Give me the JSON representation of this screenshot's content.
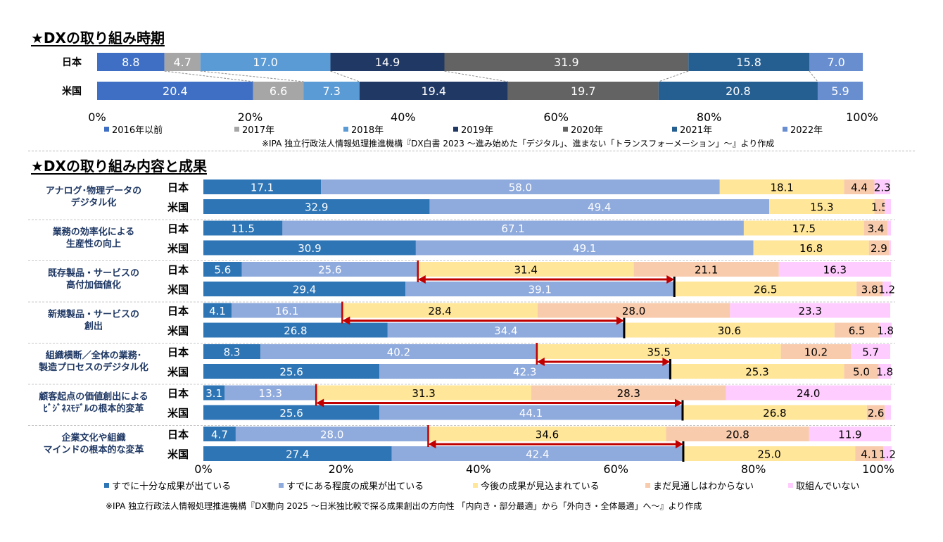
{
  "page": {
    "background": "#ffffff"
  },
  "charts": [
    {
      "title": "★DXの取り組み時期",
      "source": "※IPA 独立行政法人情報処理推進機構『DX白書 2023 ～進み始めた「デジタル」、進まない「トランスフォーメーション」～』より作成"
    },
    {
      "title": "★DXの取り組み内容と成果",
      "source": "※IPA 独立行政法人情報処理推進機構『DX動向 2025 ～日米独比較で探る成果創出の方向性 「内向き・部分最適」から「外向き・全体最適」へ～』より作成"
    }
  ],
  "chart_data": [
    {
      "type": "bar",
      "orientation": "horizontal",
      "stacked": true,
      "title": "★DXの取り組み時期",
      "categories": [
        "日本",
        "米国"
      ],
      "series": [
        {
          "name": "2016年以前",
          "color": "#3f6fc4",
          "values": [
            8.8,
            20.4
          ]
        },
        {
          "name": "2017年",
          "color": "#a6a6a6",
          "values": [
            4.7,
            6.6
          ]
        },
        {
          "name": "2018年",
          "color": "#5b9bd5",
          "values": [
            17.0,
            7.3
          ]
        },
        {
          "name": "2019年",
          "color": "#203864",
          "values": [
            14.9,
            19.4
          ]
        },
        {
          "name": "2020年",
          "color": "#636363",
          "values": [
            31.9,
            19.7
          ]
        },
        {
          "name": "2021年",
          "color": "#255e91",
          "values": [
            15.8,
            20.8
          ]
        },
        {
          "name": "2022年",
          "color": "#698ed0",
          "values": [
            7.0,
            5.9
          ]
        }
      ],
      "xlim": [
        0,
        100
      ],
      "ticks": [
        "0%",
        "20%",
        "40%",
        "60%",
        "80%",
        "100%"
      ],
      "legend": "bottom",
      "grid": false
    },
    {
      "type": "bar",
      "orientation": "horizontal",
      "stacked": true,
      "title": "★DXの取り組み内容と成果",
      "groups": [
        {
          "label": "アナログ･物理データの\nデジタル化",
          "rows": [
            {
              "country": "日本",
              "values": [
                17.1,
                58.0,
                18.1,
                4.4,
                2.3
              ]
            },
            {
              "country": "米国",
              "values": [
                32.9,
                49.4,
                15.3,
                1.5,
                0.9
              ]
            }
          ]
        },
        {
          "label": "業務の効率化による\n生産性の向上",
          "rows": [
            {
              "country": "日本",
              "values": [
                11.5,
                67.1,
                17.5,
                3.4,
                0.5
              ]
            },
            {
              "country": "米国",
              "values": [
                30.9,
                49.1,
                16.8,
                2.9,
                0.3
              ]
            }
          ]
        },
        {
          "label": "既存製品・サービスの\n高付加価値化",
          "rows": [
            {
              "country": "日本",
              "values": [
                5.6,
                25.6,
                31.4,
                21.1,
                16.3
              ]
            },
            {
              "country": "米国",
              "values": [
                29.4,
                39.1,
                26.5,
                3.8,
                1.2
              ]
            }
          ]
        },
        {
          "label": "新規製品・サービスの\n創出",
          "rows": [
            {
              "country": "日本",
              "values": [
                4.1,
                16.1,
                28.4,
                28.0,
                23.3
              ]
            },
            {
              "country": "米国",
              "values": [
                26.8,
                34.4,
                30.6,
                6.5,
                1.8
              ]
            }
          ]
        },
        {
          "label": "組織横断／全体の業務･\n製造プロセスのデジタル化",
          "rows": [
            {
              "country": "日本",
              "values": [
                8.3,
                40.2,
                35.5,
                10.2,
                5.7
              ]
            },
            {
              "country": "米国",
              "values": [
                25.6,
                42.3,
                25.3,
                5.0,
                1.8
              ]
            }
          ]
        },
        {
          "label": "顧客起点の価値創出による\nﾋﾞｼﾞﾈｽﾓﾃﾞﾙの根本的変革",
          "rows": [
            {
              "country": "日本",
              "values": [
                3.1,
                13.3,
                31.3,
                28.3,
                24.0
              ]
            },
            {
              "country": "米国",
              "values": [
                25.6,
                44.1,
                26.8,
                2.6,
                0.9
              ]
            }
          ]
        },
        {
          "label": "企業文化や組織\nマインドの根本的な変革",
          "rows": [
            {
              "country": "日本",
              "values": [
                4.7,
                28.0,
                34.6,
                20.8,
                11.9
              ]
            },
            {
              "country": "米国",
              "values": [
                27.4,
                42.4,
                25.0,
                4.1,
                1.2
              ]
            }
          ]
        }
      ],
      "series": [
        {
          "name": "すでに十分な成果が出ている",
          "color": "#2e75b6"
        },
        {
          "name": "すでにある程度の成果が出ている",
          "color": "#8faadc"
        },
        {
          "name": "今後の成果が見込まれている",
          "color": "#ffe699"
        },
        {
          "name": "まだ見通しはわからない",
          "color": "#f8cbad"
        },
        {
          "name": "取組んでいない",
          "color": "#ffccff"
        }
      ],
      "hidden_labels": [
        [
          false,
          false,
          false,
          false,
          false
        ],
        [
          false,
          false,
          false,
          false,
          true
        ],
        [
          false,
          false,
          false,
          false,
          true
        ],
        [
          false,
          false,
          false,
          false,
          true
        ],
        [
          false,
          false,
          false,
          false,
          false
        ],
        [
          false,
          false,
          false,
          false,
          false
        ],
        [
          false,
          false,
          false,
          false,
          false
        ],
        [
          false,
          false,
          false,
          false,
          false
        ],
        [
          false,
          false,
          false,
          false,
          false
        ],
        [
          false,
          false,
          false,
          false,
          false
        ],
        [
          false,
          false,
          false,
          false,
          false
        ],
        [
          false,
          false,
          false,
          false,
          true
        ],
        [
          false,
          false,
          false,
          false,
          false
        ],
        [
          false,
          false,
          false,
          false,
          false
        ]
      ],
      "gap_arrows": [
        2,
        3,
        4,
        5,
        6
      ],
      "arrow_color": "#c00000",
      "xlim": [
        0,
        100
      ],
      "ticks": [
        "0%",
        "20%",
        "40%",
        "60%",
        "80%",
        "100%"
      ],
      "legend": "bottom",
      "grid": false
    }
  ]
}
